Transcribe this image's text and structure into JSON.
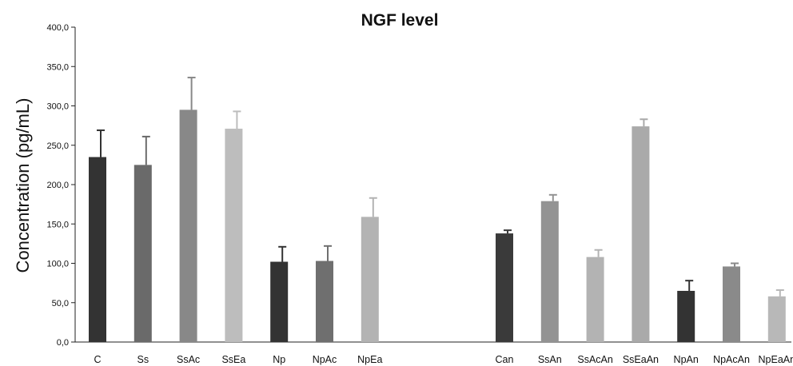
{
  "chart_data": {
    "type": "bar",
    "title": "NGF level",
    "xlabel": "",
    "ylabel": "Concentration (pg/mL)",
    "ylim": [
      0,
      400
    ],
    "yticks": [
      "0,0",
      "50,0",
      "100,0",
      "150,0",
      "200,0",
      "250,0",
      "300,0",
      "350,0",
      "400,0"
    ],
    "grid": false,
    "legend": "none",
    "categories": [
      "C",
      "Ss",
      "SsAc",
      "SsEa",
      "Np",
      "NpAc",
      "NpEa",
      "Can",
      "SsAn",
      "SsAcAn",
      "SsEaAn",
      "NpAn",
      "NpAcAn",
      "NpEaAn"
    ],
    "values": [
      235,
      225,
      295,
      271,
      102,
      103,
      159,
      138,
      179,
      108,
      274,
      65,
      96,
      58
    ],
    "error": [
      34,
      36,
      41,
      22,
      19,
      19,
      24,
      4,
      8,
      9,
      9,
      13,
      4,
      8
    ],
    "colors": [
      "#333333",
      "#6a6a6a",
      "#888888",
      "#bdbdbd",
      "#333333",
      "#6f6f6f",
      "#b3b3b3",
      "#3a3a3a",
      "#939393",
      "#b3b3b3",
      "#aaaaaa",
      "#333333",
      "#8a8a8a",
      "#b8b8b8"
    ]
  }
}
